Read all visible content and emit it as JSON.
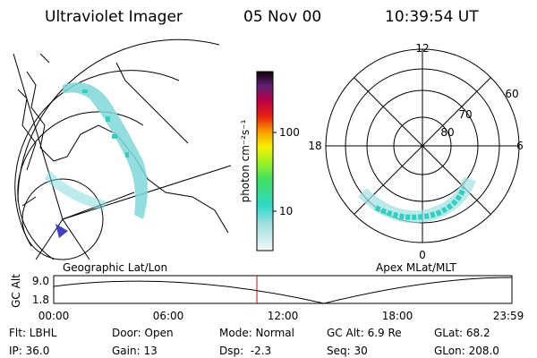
{
  "header": {
    "title": "Ultraviolet Imager",
    "date": "05 Nov 00",
    "time": "10:39:54 UT"
  },
  "colorbar": {
    "label": "photon cm⁻²s⁻¹",
    "ticks": [
      "100",
      "10"
    ]
  },
  "map": {
    "label": "Geographic Lat/Lon"
  },
  "polar": {
    "label": "Apex MLat/MLT",
    "mlt_labels": [
      "12",
      "18",
      "6",
      "0"
    ],
    "mlat_labels": [
      "60",
      "70",
      "80"
    ]
  },
  "altitude_plot": {
    "axis_label": "GC Alt",
    "yticks": [
      "9.0",
      "1.8"
    ],
    "xticks": [
      "00:00",
      "06:00",
      "12:00",
      "18:00",
      "23:59"
    ]
  },
  "info": [
    [
      "Flt: LBHL",
      "Door: Open",
      "Mode: Normal",
      "GC Alt: 6.9 Re",
      "GLat: 68.2"
    ],
    [
      "IP: 36.0",
      "Gain: 13",
      "Dsp:  -2.3",
      "Seq: 30",
      "GLon: 208.0"
    ]
  ]
}
